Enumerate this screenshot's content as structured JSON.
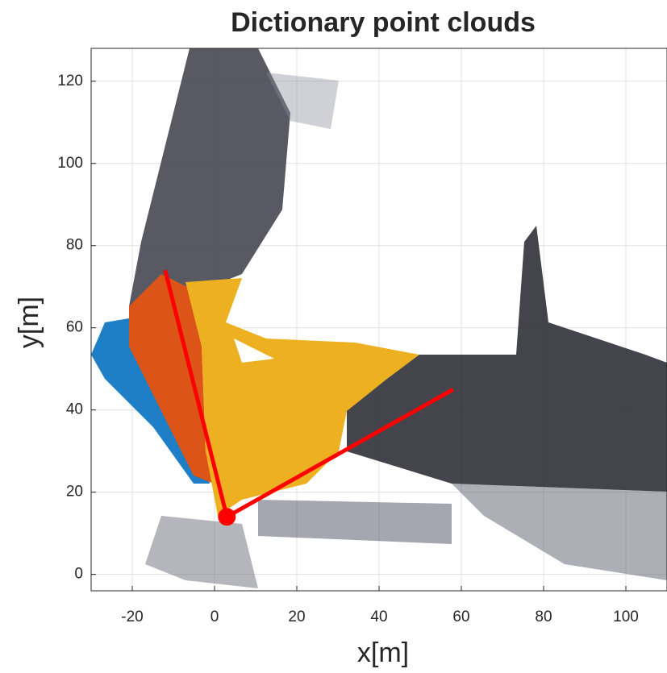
{
  "chart_data": {
    "type": "line",
    "title": "Dictionary point clouds",
    "x_label": "x[m]",
    "y_label": "y[m]",
    "x": [
      -12,
      3,
      58
    ],
    "series": [
      {
        "color": "#ff0000",
        "values": [
          74,
          14,
          45
        ]
      }
    ],
    "xlim": [
      -30,
      110
    ],
    "ylim": [
      -4,
      128
    ],
    "xticks": [
      -20,
      0,
      20,
      40,
      60,
      80,
      100
    ],
    "yticks": [
      0,
      20,
      40,
      60,
      80,
      100,
      120
    ],
    "grid": true
  }
}
